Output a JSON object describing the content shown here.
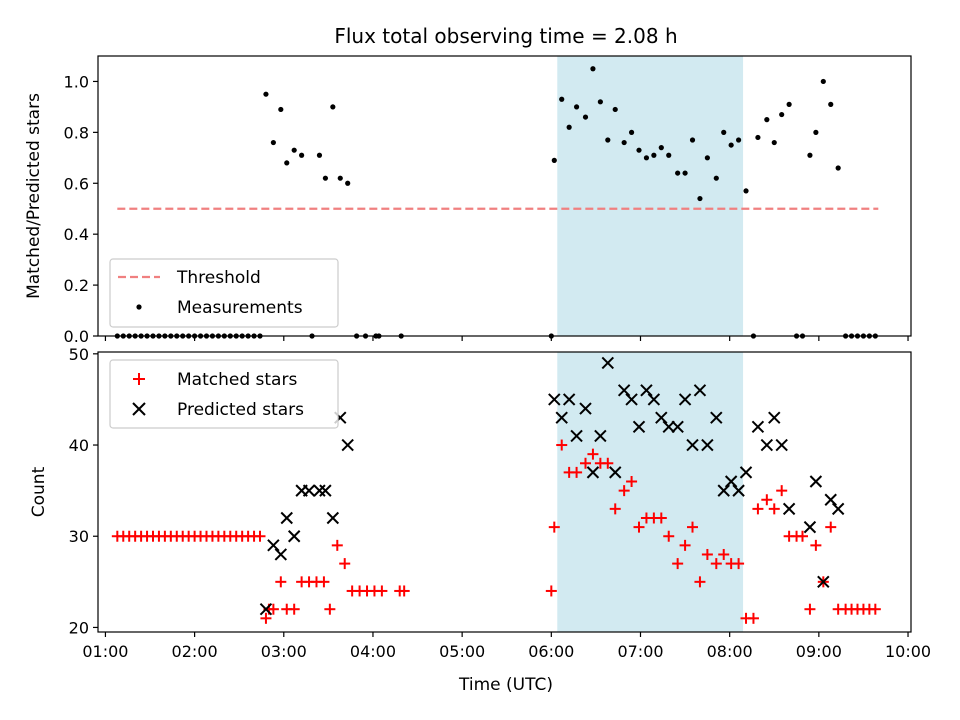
{
  "chart_data": [
    {
      "type": "scatter",
      "title": "Flux total observing time = 2.08 h",
      "ylabel": "Matched/Predicted stars",
      "xlabel": "",
      "ylim": [
        0,
        1.1
      ],
      "yticks": [
        0.0,
        0.2,
        0.4,
        0.6,
        0.8,
        1.0
      ],
      "ytick_labels": [
        "0.0",
        "0.2",
        "0.4",
        "0.6",
        "0.8",
        "1.0"
      ],
      "xlim": [
        "00:55",
        "10:02"
      ],
      "shaded_interval": [
        "06:04",
        "08:09"
      ],
      "shaded_color": "#add8e6",
      "legend_position": "lower-left",
      "threshold": {
        "name": "Threshold",
        "y": 0.5,
        "x": [
          "01:08",
          "09:40"
        ],
        "color": "#f08080"
      },
      "series": [
        {
          "name": "Measurements",
          "color": "#000000",
          "marker": "dot",
          "points": [
            [
              "01:08",
              0
            ],
            [
              "01:12",
              0
            ],
            [
              "01:16",
              0
            ],
            [
              "01:20",
              0
            ],
            [
              "01:24",
              0
            ],
            [
              "01:28",
              0
            ],
            [
              "01:32",
              0
            ],
            [
              "01:36",
              0
            ],
            [
              "01:40",
              0
            ],
            [
              "01:44",
              0
            ],
            [
              "01:48",
              0
            ],
            [
              "01:52",
              0
            ],
            [
              "01:56",
              0
            ],
            [
              "02:00",
              0
            ],
            [
              "02:04",
              0
            ],
            [
              "02:08",
              0
            ],
            [
              "02:12",
              0
            ],
            [
              "02:16",
              0
            ],
            [
              "02:20",
              0
            ],
            [
              "02:24",
              0
            ],
            [
              "02:28",
              0
            ],
            [
              "02:32",
              0
            ],
            [
              "02:36",
              0
            ],
            [
              "02:40",
              0
            ],
            [
              "02:44",
              0
            ],
            [
              "02:48",
              0.95
            ],
            [
              "02:53",
              0.76
            ],
            [
              "02:58",
              0.89
            ],
            [
              "03:02",
              0.68
            ],
            [
              "03:07",
              0.73
            ],
            [
              "03:12",
              0.71
            ],
            [
              "03:19",
              0.0
            ],
            [
              "03:24",
              0.71
            ],
            [
              "03:28",
              0.62
            ],
            [
              "03:33",
              0.9
            ],
            [
              "03:38",
              0.62
            ],
            [
              "03:43",
              0.6
            ],
            [
              "03:49",
              0.0
            ],
            [
              "03:55",
              0.0
            ],
            [
              "04:02",
              0.0
            ],
            [
              "04:04",
              0.0
            ],
            [
              "04:19",
              0.0
            ],
            [
              "06:00",
              0.0
            ],
            [
              "06:02",
              0.69
            ],
            [
              "06:07",
              0.93
            ],
            [
              "06:12",
              0.82
            ],
            [
              "06:17",
              0.9
            ],
            [
              "06:23",
              0.86
            ],
            [
              "06:28",
              1.05
            ],
            [
              "06:33",
              0.92
            ],
            [
              "06:38",
              0.77
            ],
            [
              "06:43",
              0.89
            ],
            [
              "06:49",
              0.76
            ],
            [
              "06:54",
              0.8
            ],
            [
              "06:59",
              0.73
            ],
            [
              "07:04",
              0.7
            ],
            [
              "07:09",
              0.71
            ],
            [
              "07:14",
              0.74
            ],
            [
              "07:19",
              0.71
            ],
            [
              "07:25",
              0.64
            ],
            [
              "07:30",
              0.64
            ],
            [
              "07:35",
              0.77
            ],
            [
              "07:40",
              0.54
            ],
            [
              "07:45",
              0.7
            ],
            [
              "07:51",
              0.62
            ],
            [
              "07:56",
              0.8
            ],
            [
              "08:01",
              0.75
            ],
            [
              "08:06",
              0.77
            ],
            [
              "08:11",
              0.57
            ],
            [
              "08:16",
              0.0
            ],
            [
              "08:19",
              0.78
            ],
            [
              "08:25",
              0.85
            ],
            [
              "08:30",
              0.76
            ],
            [
              "08:35",
              0.87
            ],
            [
              "08:40",
              0.91
            ],
            [
              "08:45",
              0.0
            ],
            [
              "08:49",
              0.0
            ],
            [
              "08:54",
              0.71
            ],
            [
              "08:58",
              0.8
            ],
            [
              "09:03",
              1.0
            ],
            [
              "09:08",
              0.91
            ],
            [
              "09:13",
              0.66
            ],
            [
              "09:18",
              0.0
            ],
            [
              "09:22",
              0.0
            ],
            [
              "09:26",
              0.0
            ],
            [
              "09:30",
              0.0
            ],
            [
              "09:34",
              0.0
            ],
            [
              "09:38",
              0.0
            ]
          ]
        }
      ]
    },
    {
      "type": "scatter",
      "title": "",
      "ylabel": "Count",
      "xlabel": "Time (UTC)",
      "ylim": [
        19.5,
        50.2
      ],
      "yticks": [
        20,
        30,
        40,
        50
      ],
      "ytick_labels": [
        "20",
        "30",
        "40",
        "50"
      ],
      "xlim": [
        "00:55",
        "10:02"
      ],
      "xticks": [
        "01:00",
        "02:00",
        "03:00",
        "04:00",
        "05:00",
        "06:00",
        "07:00",
        "08:00",
        "09:00",
        "10:00"
      ],
      "shaded_interval": [
        "06:04",
        "08:09"
      ],
      "shaded_color": "#add8e6",
      "legend_position": "upper-left",
      "series": [
        {
          "name": "Matched stars",
          "color": "#ff0000",
          "marker": "plus",
          "points": [
            [
              "01:08",
              30
            ],
            [
              "01:12",
              30
            ],
            [
              "01:16",
              30
            ],
            [
              "01:20",
              30
            ],
            [
              "01:24",
              30
            ],
            [
              "01:28",
              30
            ],
            [
              "01:32",
              30
            ],
            [
              "01:36",
              30
            ],
            [
              "01:40",
              30
            ],
            [
              "01:44",
              30
            ],
            [
              "01:48",
              30
            ],
            [
              "01:52",
              30
            ],
            [
              "01:56",
              30
            ],
            [
              "02:00",
              30
            ],
            [
              "02:04",
              30
            ],
            [
              "02:08",
              30
            ],
            [
              "02:12",
              30
            ],
            [
              "02:16",
              30
            ],
            [
              "02:20",
              30
            ],
            [
              "02:24",
              30
            ],
            [
              "02:28",
              30
            ],
            [
              "02:32",
              30
            ],
            [
              "02:36",
              30
            ],
            [
              "02:40",
              30
            ],
            [
              "02:44",
              30
            ],
            [
              "02:48",
              21
            ],
            [
              "02:50",
              22
            ],
            [
              "02:53",
              22
            ],
            [
              "02:58",
              25
            ],
            [
              "03:02",
              22
            ],
            [
              "03:07",
              22
            ],
            [
              "03:12",
              25
            ],
            [
              "03:17",
              25
            ],
            [
              "03:22",
              25
            ],
            [
              "03:27",
              25
            ],
            [
              "03:31",
              22
            ],
            [
              "03:36",
              29
            ],
            [
              "03:41",
              27
            ],
            [
              "03:46",
              24
            ],
            [
              "03:51",
              24
            ],
            [
              "03:56",
              24
            ],
            [
              "04:01",
              24
            ],
            [
              "04:06",
              24
            ],
            [
              "04:18",
              24
            ],
            [
              "04:21",
              24
            ],
            [
              "06:00",
              24
            ],
            [
              "06:02",
              31
            ],
            [
              "06:07",
              40
            ],
            [
              "06:12",
              37
            ],
            [
              "06:17",
              37
            ],
            [
              "06:23",
              38
            ],
            [
              "06:28",
              39
            ],
            [
              "06:33",
              38
            ],
            [
              "06:38",
              38
            ],
            [
              "06:43",
              33
            ],
            [
              "06:49",
              35
            ],
            [
              "06:54",
              36
            ],
            [
              "06:59",
              31
            ],
            [
              "07:04",
              32
            ],
            [
              "07:09",
              32
            ],
            [
              "07:14",
              32
            ],
            [
              "07:19",
              30
            ],
            [
              "07:25",
              27
            ],
            [
              "07:30",
              29
            ],
            [
              "07:35",
              31
            ],
            [
              "07:40",
              25
            ],
            [
              "07:45",
              28
            ],
            [
              "07:51",
              27
            ],
            [
              "07:56",
              28
            ],
            [
              "08:01",
              27
            ],
            [
              "08:06",
              27
            ],
            [
              "08:11",
              21
            ],
            [
              "08:16",
              21
            ],
            [
              "08:19",
              33
            ],
            [
              "08:25",
              34
            ],
            [
              "08:30",
              33
            ],
            [
              "08:35",
              35
            ],
            [
              "08:40",
              30
            ],
            [
              "08:45",
              30
            ],
            [
              "08:49",
              30
            ],
            [
              "08:54",
              22
            ],
            [
              "08:58",
              29
            ],
            [
              "09:03",
              25
            ],
            [
              "09:08",
              31
            ],
            [
              "09:13",
              22
            ],
            [
              "09:18",
              22
            ],
            [
              "09:22",
              22
            ],
            [
              "09:26",
              22
            ],
            [
              "09:30",
              22
            ],
            [
              "09:34",
              22
            ],
            [
              "09:38",
              22
            ]
          ]
        },
        {
          "name": "Predicted stars",
          "color": "#000000",
          "marker": "x",
          "points": [
            [
              "02:48",
              22
            ],
            [
              "02:53",
              29
            ],
            [
              "02:58",
              28
            ],
            [
              "03:02",
              32
            ],
            [
              "03:07",
              30
            ],
            [
              "03:12",
              35
            ],
            [
              "03:17",
              35
            ],
            [
              "03:24",
              35
            ],
            [
              "03:28",
              35
            ],
            [
              "03:33",
              32
            ],
            [
              "03:38",
              43
            ],
            [
              "03:43",
              40
            ],
            [
              "06:02",
              45
            ],
            [
              "06:07",
              43
            ],
            [
              "06:12",
              45
            ],
            [
              "06:17",
              41
            ],
            [
              "06:23",
              44
            ],
            [
              "06:28",
              37
            ],
            [
              "06:33",
              41
            ],
            [
              "06:38",
              49
            ],
            [
              "06:43",
              37
            ],
            [
              "06:49",
              46
            ],
            [
              "06:54",
              45
            ],
            [
              "06:59",
              42
            ],
            [
              "07:04",
              46
            ],
            [
              "07:09",
              45
            ],
            [
              "07:14",
              43
            ],
            [
              "07:19",
              42
            ],
            [
              "07:25",
              42
            ],
            [
              "07:30",
              45
            ],
            [
              "07:35",
              40
            ],
            [
              "07:40",
              46
            ],
            [
              "07:45",
              40
            ],
            [
              "07:51",
              43
            ],
            [
              "07:56",
              35
            ],
            [
              "08:01",
              36
            ],
            [
              "08:06",
              35
            ],
            [
              "08:11",
              37
            ],
            [
              "08:19",
              42
            ],
            [
              "08:25",
              40
            ],
            [
              "08:30",
              43
            ],
            [
              "08:35",
              40
            ],
            [
              "08:40",
              33
            ],
            [
              "08:54",
              31
            ],
            [
              "08:58",
              36
            ],
            [
              "09:03",
              25
            ],
            [
              "09:08",
              34
            ],
            [
              "09:13",
              33
            ]
          ]
        }
      ]
    }
  ]
}
